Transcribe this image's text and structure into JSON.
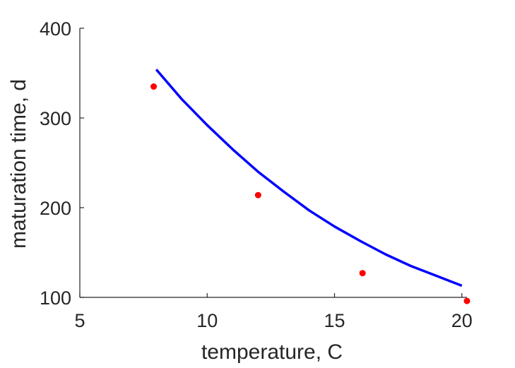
{
  "chart_data": {
    "type": "scatter",
    "xlabel": "temperature, C",
    "ylabel": "maturation time, d",
    "xlim": [
      5,
      20.2
    ],
    "ylim": [
      100,
      400
    ],
    "xticks": [
      5,
      10,
      15,
      20
    ],
    "yticks": [
      100,
      200,
      300,
      400
    ],
    "xtick_labels": [
      "5",
      "10",
      "15",
      "20"
    ],
    "ytick_labels": [
      "100",
      "200",
      "300",
      "400"
    ],
    "grid": false,
    "series": [
      {
        "kind": "points",
        "color": "#ff0000",
        "x": [
          7.9,
          12.0,
          16.1,
          20.2
        ],
        "y": [
          335,
          214,
          127,
          96
        ]
      },
      {
        "kind": "line",
        "color": "#0000ff",
        "x": [
          8.0,
          9.0,
          10.0,
          11.0,
          12.0,
          13.0,
          14.0,
          15.0,
          16.0,
          17.0,
          18.0,
          19.0,
          20.0
        ],
        "y": [
          354,
          321,
          292,
          265,
          240,
          218,
          197,
          179,
          163,
          148,
          135,
          124,
          113
        ]
      }
    ]
  }
}
